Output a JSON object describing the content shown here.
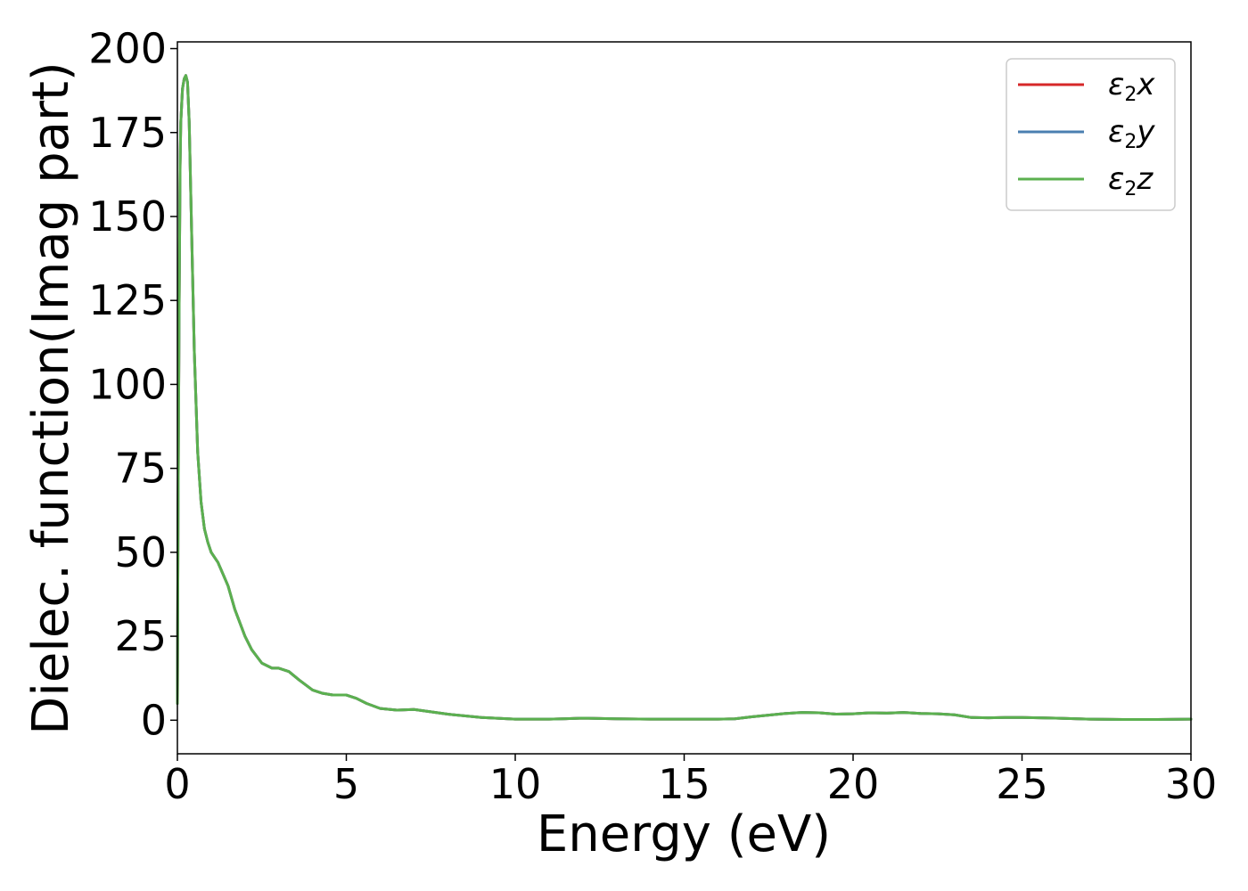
{
  "chart_data": {
    "type": "line",
    "xlabel": "Energy (eV)",
    "ylabel": "Dielec. function(Imag part)",
    "xlim": [
      0,
      30
    ],
    "ylim": [
      -10,
      202
    ],
    "xticks": [
      0,
      5,
      10,
      15,
      20,
      25,
      30
    ],
    "yticks": [
      0,
      25,
      50,
      75,
      100,
      125,
      150,
      175,
      200
    ],
    "grid": false,
    "legend_position": "top-right",
    "x": [
      0,
      0.02,
      0.05,
      0.08,
      0.1,
      0.15,
      0.2,
      0.25,
      0.3,
      0.35,
      0.4,
      0.5,
      0.6,
      0.7,
      0.8,
      0.9,
      1.0,
      1.2,
      1.5,
      1.7,
      2.0,
      2.2,
      2.5,
      2.8,
      3.0,
      3.3,
      3.6,
      4.0,
      4.3,
      4.6,
      5.0,
      5.3,
      5.6,
      6.0,
      6.5,
      7.0,
      7.5,
      8.0,
      9.0,
      10.0,
      11.0,
      12.0,
      13.0,
      14.0,
      15.0,
      16.0,
      16.5,
      17.0,
      17.5,
      18.0,
      18.5,
      19.0,
      19.5,
      20.0,
      20.5,
      21.0,
      21.5,
      22.0,
      22.5,
      23.0,
      23.5,
      24.0,
      24.5,
      25.0,
      26.0,
      27.0,
      28.0,
      29.0,
      30.0
    ],
    "series": [
      {
        "name": "ε2x",
        "color": "#d62728",
        "values": [
          5,
          60,
          120,
          165,
          178,
          188,
          191,
          192,
          190,
          178,
          155,
          110,
          80,
          65,
          57,
          53,
          50,
          47,
          40,
          33,
          25,
          21,
          17,
          15.5,
          15.5,
          14.5,
          12,
          9,
          8,
          7.5,
          7.5,
          6.5,
          5,
          3.5,
          3,
          3.2,
          2.5,
          1.8,
          0.8,
          0.3,
          0.3,
          0.6,
          0.4,
          0.3,
          0.3,
          0.3,
          0.4,
          1,
          1.5,
          2,
          2.3,
          2.2,
          1.8,
          1.9,
          2.2,
          2.1,
          2.3,
          2.0,
          1.9,
          1.6,
          0.8,
          0.7,
          0.8,
          0.8,
          0.6,
          0.3,
          0.2,
          0.2,
          0.3
        ]
      },
      {
        "name": "ε2y",
        "color": "#4a7fb0",
        "values": [
          5,
          60,
          120,
          165,
          178,
          188,
          191,
          192,
          190,
          178,
          155,
          110,
          80,
          65,
          57,
          53,
          50,
          47,
          40,
          33,
          25,
          21,
          17,
          15.5,
          15.5,
          14.5,
          12,
          9,
          8,
          7.5,
          7.5,
          6.5,
          5,
          3.5,
          3,
          3.2,
          2.5,
          1.8,
          0.8,
          0.3,
          0.3,
          0.6,
          0.4,
          0.3,
          0.3,
          0.3,
          0.4,
          1,
          1.5,
          2,
          2.3,
          2.2,
          1.8,
          1.9,
          2.2,
          2.1,
          2.3,
          2.0,
          1.9,
          1.6,
          0.8,
          0.7,
          0.8,
          0.8,
          0.6,
          0.3,
          0.2,
          0.2,
          0.3
        ]
      },
      {
        "name": "ε2z",
        "color": "#5bb04f",
        "values": [
          5,
          60,
          120,
          165,
          178,
          188,
          191,
          192,
          190,
          178,
          155,
          110,
          80,
          65,
          57,
          53,
          50,
          47,
          40,
          33,
          25,
          21,
          17,
          15.5,
          15.5,
          14.5,
          12,
          9,
          8,
          7.5,
          7.5,
          6.5,
          5,
          3.5,
          3,
          3.2,
          2.5,
          1.8,
          0.8,
          0.3,
          0.3,
          0.6,
          0.4,
          0.3,
          0.3,
          0.3,
          0.4,
          1,
          1.5,
          2,
          2.3,
          2.2,
          1.8,
          1.9,
          2.2,
          2.1,
          2.3,
          2.0,
          1.9,
          1.6,
          0.8,
          0.7,
          0.8,
          0.8,
          0.6,
          0.3,
          0.2,
          0.2,
          0.3
        ]
      }
    ],
    "legend": [
      {
        "base": "ε",
        "sub": "2",
        "axis": "x",
        "color": "#d62728"
      },
      {
        "base": "ε",
        "sub": "2",
        "axis": "y",
        "color": "#4a7fb0"
      },
      {
        "base": "ε",
        "sub": "2",
        "axis": "z",
        "color": "#5bb04f"
      }
    ]
  }
}
